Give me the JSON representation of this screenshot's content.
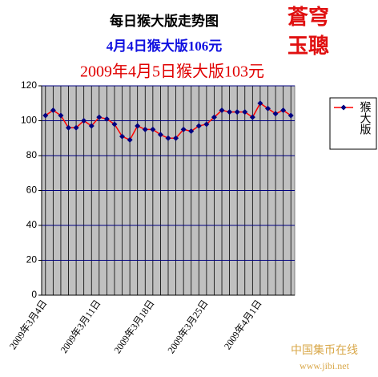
{
  "chart_data": {
    "type": "line",
    "title": "每日猴大版走势图",
    "subtitle": "4月4日猴大版106元",
    "headline": "2009年4月5日猴大版103元",
    "stamp": [
      "蒼穹",
      "玉聰"
    ],
    "watermark": [
      "中国集币在线",
      "www.jibi.net"
    ],
    "categories": [
      "2009年3月4日",
      null,
      null,
      null,
      null,
      null,
      null,
      "2009年3月11日",
      null,
      null,
      null,
      null,
      null,
      null,
      "2009年3月18日",
      null,
      null,
      null,
      null,
      null,
      null,
      "2009年3月25日",
      null,
      null,
      null,
      null,
      null,
      null,
      "2009年4月1日",
      null,
      null,
      null,
      null
    ],
    "series": [
      {
        "name": "猴大版",
        "color": "#ff0000",
        "marker_color": "#000080",
        "values": [
          103,
          106,
          103,
          96,
          96,
          100,
          97,
          102,
          101,
          98,
          91,
          89,
          97,
          95,
          95,
          92,
          90,
          90,
          95,
          94,
          97,
          98,
          102,
          106,
          105,
          105,
          105,
          102,
          110,
          107,
          104,
          106,
          103
        ]
      }
    ],
    "ylim": [
      0,
      120
    ],
    "yticks": [
      0,
      20,
      40,
      60,
      80,
      100,
      120
    ],
    "grid": true,
    "legend": "right"
  }
}
